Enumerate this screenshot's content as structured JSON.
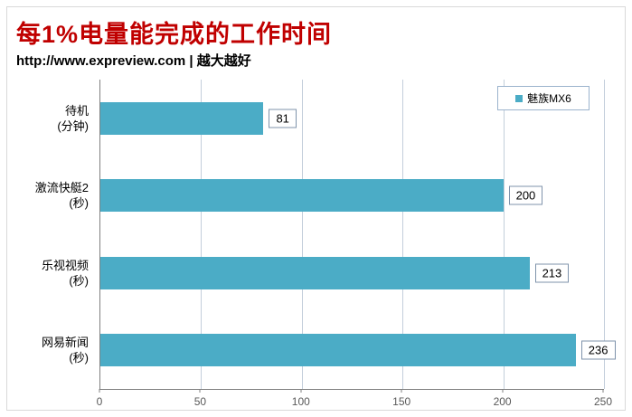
{
  "chart_data": {
    "type": "bar",
    "orientation": "horizontal",
    "title": "每1%电量能完成的工作时间",
    "subtitle": "http://www.expreview.com | 越大越好",
    "categories": [
      "待机\n(分钟)",
      "激流快艇2\n(秒)",
      "乐视视频\n(秒)",
      "网易新闻\n(秒)"
    ],
    "series": [
      {
        "name": "魅族MX6",
        "color": "#4bacc6",
        "values": [
          81,
          200,
          213,
          236
        ]
      }
    ],
    "data_labels": [
      81,
      200,
      213,
      236
    ],
    "xlim": [
      0,
      250
    ],
    "xticks": [
      0,
      50,
      100,
      150,
      200,
      250
    ],
    "grid": "vertical",
    "legend": {
      "position": "top-right",
      "entries": [
        {
          "label": "魅族MX6",
          "color": "#4bacc6"
        }
      ]
    }
  },
  "colors": {
    "bar": "#4bacc6",
    "title": "#c00000",
    "subtitle": "#000000",
    "gridline": "#c3cedb",
    "axis": "#808080",
    "tick_label": "#595959",
    "legend_border": "#9bb3cd",
    "data_label_border": "#7f93ab",
    "frame_border": "#d9d9d9"
  }
}
